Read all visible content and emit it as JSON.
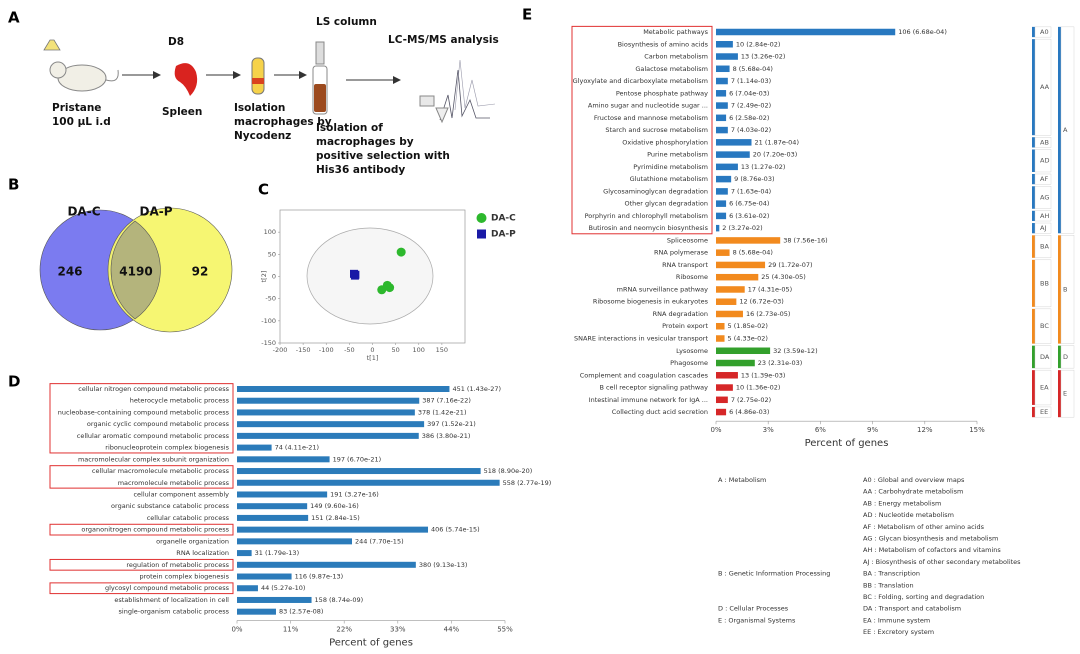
{
  "panel_labels": [
    "A",
    "B",
    "C",
    "D",
    "E"
  ],
  "workflow": {
    "injection": [
      "Pristane",
      "100 µL i.d"
    ],
    "day": "D8",
    "organ": "Spleen",
    "isolation": [
      "Isolation",
      "macrophages by",
      "Nycodenz"
    ],
    "column": "LS column",
    "selection": [
      "Isolation of",
      "macrophages by",
      "positive selection with",
      "His36 antibody"
    ],
    "analysis": "LC-MS/MS analysis"
  },
  "venn": {
    "sets": [
      "DA-C",
      "DA-P"
    ],
    "values": [
      246,
      4190,
      92
    ],
    "colors": [
      "#7b7bf0",
      "#f5f56a"
    ]
  },
  "chart_data": [
    {
      "type": "scatter",
      "xlabel": "t[1]",
      "ylabel": "t[2]",
      "xlim": [
        -200,
        200
      ],
      "ylim": [
        -150,
        150
      ],
      "xticks": [
        -200,
        -150,
        -100,
        -50,
        0,
        50,
        100,
        150
      ],
      "yticks": [
        -150,
        -100,
        -50,
        0,
        50,
        100
      ],
      "legend": "outside right",
      "series": [
        {
          "name": "DA-C",
          "color": "#2db82d",
          "marker": "circle",
          "x": [
            62,
            32,
            37,
            20
          ],
          "y": [
            55,
            -20,
            -25,
            -30
          ]
        },
        {
          "name": "DA-P",
          "color": "#1a1aa6",
          "marker": "square",
          "x": [
            -40,
            -37,
            -38
          ],
          "y": [
            6,
            4,
            2
          ]
        }
      ]
    },
    {
      "type": "barh",
      "xlabel": "Percent of genes",
      "color": "#2b7bba",
      "xlim": [
        0,
        55
      ],
      "xticks": [
        {
          "value": 0,
          "label": "0%"
        },
        {
          "value": 11,
          "label": "11%"
        },
        {
          "value": 22,
          "label": "22%"
        },
        {
          "value": 33,
          "label": "33%"
        },
        {
          "value": 44,
          "label": "44%"
        },
        {
          "value": 55,
          "label": "55%"
        }
      ],
      "categories": [
        "cellular nitrogen compound metabolic process",
        "heterocycle metabolic process",
        "nucleobase-containing compound metabolic process",
        "organic cyclic compound metabolic process",
        "cellular aromatic compound metabolic process",
        "ribonucleoprotein complex biogenesis",
        "macromolecular complex subunit organization",
        "cellular macromolecule metabolic process",
        "macromolecule metabolic process",
        "cellular component assembly",
        "organic substance catabolic process",
        "cellular catabolic process",
        "organonitrogen compound metabolic process",
        "organelle organization",
        "RNA localization",
        "regulation of metabolic process",
        "protein complex biogenesis",
        "glycosyl compound metabolic process",
        "establishment of localization in cell",
        "single-organism catabolic process"
      ],
      "values": [
        43.6,
        37.4,
        36.5,
        38.4,
        37.3,
        7.1,
        19.0,
        50.0,
        53.9,
        18.5,
        14.4,
        14.6,
        39.2,
        23.6,
        3.0,
        36.7,
        11.2,
        4.3,
        15.3,
        8.0
      ],
      "bar_labels": [
        "451 (1.43e-27)",
        "387 (7.16e-22)",
        "378 (1.42e-21)",
        "397 (1.52e-21)",
        "386 (3.80e-21)",
        "74 (4.11e-21)",
        "197 (6.70e-21)",
        "518 (8.90e-20)",
        "558 (2.77e-19)",
        "191 (3.27e-16)",
        "149 (9.60e-16)",
        "151 (2.84e-15)",
        "406 (5.74e-15)",
        "244 (7.70e-15)",
        "31 (1.79e-13)",
        "380 (9.13e-13)",
        "116 (9.87e-13)",
        "44 (5.27e-10)",
        "158 (8.74e-09)",
        "83 (2.57e-08)"
      ],
      "highlight": [
        [
          0,
          5
        ],
        [
          7,
          8
        ],
        [
          12,
          12
        ],
        [
          15,
          15
        ],
        [
          17,
          17
        ]
      ]
    },
    {
      "type": "barh",
      "xlabel": "Percent of genes",
      "xlim": [
        0,
        15
      ],
      "xticks": [
        {
          "value": 0,
          "label": "0%"
        },
        {
          "value": 3,
          "label": "3%"
        },
        {
          "value": 6,
          "label": "6%"
        },
        {
          "value": 9,
          "label": "9%"
        },
        {
          "value": 12,
          "label": "12%"
        },
        {
          "value": 15,
          "label": "15%"
        }
      ],
      "categories": [
        "Metabolic pathways",
        "Biosynthesis of amino acids",
        "Carbon metabolism",
        "Galactose metabolism",
        "Glyoxylate and dicarboxylate metabolism",
        "Pentose phosphate pathway",
        "Amino sugar and nucleotide sugar ...",
        "Fructose and mannose metabolism",
        "Starch and sucrose metabolism",
        "Oxidative phosphorylation",
        "Purine metabolism",
        "Pyrimidine metabolism",
        "Glutathione metabolism",
        "Glycosaminoglycan degradation",
        "Other glycan degradation",
        "Porphyrin and chlorophyll metabolism",
        "Butirosin and neomycin biosynthesis",
        "Spliceosome",
        "RNA polymerase",
        "RNA transport",
        "Ribosome",
        "mRNA surveillance pathway",
        "Ribosome biogenesis in eukaryotes",
        "RNA degradation",
        "Protein export",
        "SNARE interactions in vesicular transport",
        "Lysosome",
        "Phagosome",
        "Complement and coagulation cascades",
        "B cell receptor signaling pathway",
        "Intestinal immune network for IgA ...",
        "Collecting duct acid secretion"
      ],
      "values": [
        10.3,
        0.97,
        1.26,
        0.78,
        0.68,
        0.58,
        0.68,
        0.58,
        0.68,
        2.04,
        1.94,
        1.26,
        0.87,
        0.68,
        0.58,
        0.58,
        0.19,
        3.69,
        0.78,
        2.82,
        2.43,
        1.65,
        1.17,
        1.55,
        0.49,
        0.49,
        3.11,
        2.23,
        1.26,
        0.97,
        0.68,
        0.58
      ],
      "bar_labels": [
        "106 (6.68e-04)",
        "10 (2.84e-02)",
        "13 (3.26e-02)",
        "8 (5.68e-04)",
        "7 (1.14e-03)",
        "6 (7.04e-03)",
        "7 (2.49e-02)",
        "6 (2.58e-02)",
        "7 (4.03e-02)",
        "21 (1.87e-04)",
        "20 (7.20e-03)",
        "13 (1.27e-02)",
        "9 (8.76e-03)",
        "7 (1.63e-04)",
        "6 (6.75e-04)",
        "6 (3.61e-02)",
        "2 (3.27e-02)",
        "38 (7.56e-16)",
        "8 (5.68e-04)",
        "29 (1.72e-07)",
        "25 (4.30e-05)",
        "17 (4.31e-05)",
        "12 (6.72e-03)",
        "16 (2.73e-05)",
        "5 (1.85e-02)",
        "5 (4.33e-02)",
        "32 (3.59e-12)",
        "23 (2.31e-03)",
        "13 (1.39e-03)",
        "10 (1.36e-02)",
        "7 (2.75e-02)",
        "6 (4.86e-03)"
      ],
      "colors": [
        "#2878c0",
        "#2878c0",
        "#2878c0",
        "#2878c0",
        "#2878c0",
        "#2878c0",
        "#2878c0",
        "#2878c0",
        "#2878c0",
        "#2878c0",
        "#2878c0",
        "#2878c0",
        "#2878c0",
        "#2878c0",
        "#2878c0",
        "#2878c0",
        "#2878c0",
        "#f28a1e",
        "#f28a1e",
        "#f28a1e",
        "#f28a1e",
        "#f28a1e",
        "#f28a1e",
        "#f28a1e",
        "#f28a1e",
        "#f28a1e",
        "#33a02c",
        "#33a02c",
        "#d62728",
        "#d62728",
        "#d62728",
        "#d62728"
      ],
      "highlight": [
        [
          0,
          16
        ]
      ],
      "groups": [
        {
          "label": "A0",
          "rows": [
            0,
            0
          ]
        },
        {
          "label": "AA",
          "rows": [
            1,
            8
          ]
        },
        {
          "label": "AB",
          "rows": [
            9,
            9
          ]
        },
        {
          "label": "AD",
          "rows": [
            10,
            11
          ]
        },
        {
          "label": "AF",
          "rows": [
            12,
            12
          ]
        },
        {
          "label": "AG",
          "rows": [
            13,
            14
          ]
        },
        {
          "label": "AH",
          "rows": [
            15,
            15
          ]
        },
        {
          "label": "AJ",
          "rows": [
            16,
            16
          ]
        },
        {
          "label": "BA",
          "rows": [
            17,
            18
          ]
        },
        {
          "label": "BB",
          "rows": [
            19,
            22
          ]
        },
        {
          "label": "BC",
          "rows": [
            23,
            25
          ]
        },
        {
          "label": "DA",
          "rows": [
            26,
            27
          ]
        },
        {
          "label": "EA",
          "rows": [
            28,
            30
          ]
        },
        {
          "label": "EE",
          "rows": [
            31,
            31
          ]
        }
      ],
      "supergroups": [
        {
          "label": "A",
          "rows": [
            0,
            16
          ]
        },
        {
          "label": "B",
          "rows": [
            17,
            25
          ]
        },
        {
          "label": "D",
          "rows": [
            26,
            27
          ]
        },
        {
          "label": "E",
          "rows": [
            28,
            31
          ]
        }
      ],
      "classification": [
        {
          "name": "A : Metabolism",
          "items": [
            "A0 : Global and overview maps",
            "AA : Carbohydrate metabolism",
            "AB : Energy metabolism",
            "AD : Nucleotide metabolism",
            "AF : Metabolism of other amino acids",
            "AG : Glycan biosynthesis and metabolism",
            "AH : Metabolism of cofactors and vitamins",
            "AJ : Biosynthesis of other secondary metabolites"
          ]
        },
        {
          "name": "B : Genetic Information Processing",
          "items": [
            "BA : Transcription",
            "BB : Translation",
            "BC : Folding, sorting and degradation"
          ]
        },
        {
          "name": "D : Cellular Processes",
          "items": [
            "DA : Transport and catabolism"
          ]
        },
        {
          "name": "E : Organismal Systems",
          "items": [
            "EA : Immune system",
            "EE : Excretory system"
          ]
        }
      ]
    }
  ]
}
